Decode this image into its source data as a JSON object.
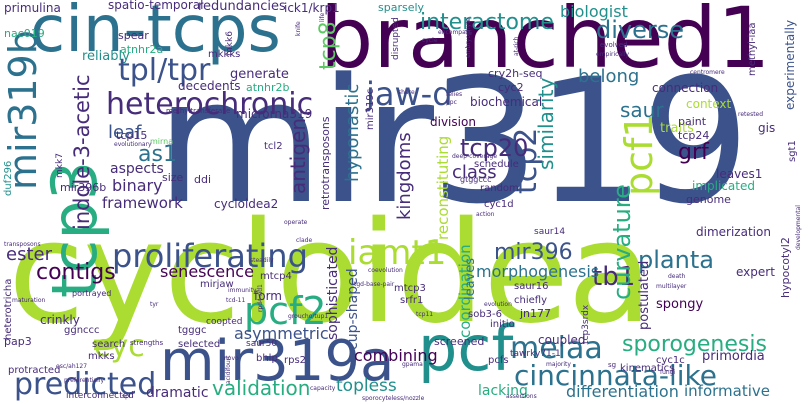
{
  "title": "word cloud",
  "palette": {
    "dark_purple": "#440154",
    "indigo": "#472c7a",
    "blue": "#3b528b",
    "slate": "#2c728e",
    "teal": "#21908d",
    "green_teal": "#27ad81",
    "green": "#5dc863",
    "yellow_green": "#aadc32",
    "yellow": "#fde725"
  },
  "words": {
    "mir319": "mir319",
    "cycloidea": "cycloidea",
    "branched1": "branched1",
    "cin_tcps": "cin-tcps",
    "tcp3": "tcp3",
    "pcf": "pcf",
    "mir319a": "mir319a",
    "mir319b": "mir319b",
    "heterochronic": "heterochronic",
    "tpl_tpr": "tpl/tpr",
    "jaw_d": "jaw-d",
    "proliferating": "proliferating",
    "iamt1": "iamt1",
    "predicted": "predicted",
    "cincinnata_like": "cincinnata-like",
    "meiaa": "meiaa",
    "sporogenesis": "sporogenesis",
    "tb1": "tb1",
    "pcf1": "pcf1",
    "pcf2": "pcf2",
    "tcp2": "tcp2",
    "tcp20": "tcp20",
    "cyc": "cyc",
    "indole_3_acetic": "indole-3-acetic",
    "interactome": "interactome",
    "diverse": "diverse",
    "biologist": "biologist",
    "contigs": "contigs",
    "validation": "validation",
    "as1": "as1",
    "curvature": "curvature",
    "similarity": "similarity",
    "antigen": "antigen",
    "hyponastic": "hyponastic",
    "kingdoms": "kingdoms",
    "tcp8": "tcp8",
    "planta": "planta",
    "mir396": "mir396",
    "morphogenesis": "morphogenesis",
    "grf": "grf",
    "saur": "saur",
    "belong": "belong",
    "class": "class",
    "leaf": "leaf",
    "asymmetric": "asymmetric",
    "ester": "ester",
    "senescence": "senescence",
    "framework": "framework",
    "binary": "binary",
    "aspects": "aspects",
    "combining": "combining",
    "dramatic": "dramatic",
    "topless": "topless",
    "differentiation": "differentiation",
    "informative": "informative",
    "lacking": "lacking",
    "coordination": "coordination",
    "sophisticated": "sophisticated",
    "cup_shaped": "cup-shaped",
    "reconstituting": "reconstituting",
    "redundancies": "redundancies",
    "spatio_temporal": "spatio-temporal",
    "primulina": "primulina",
    "ick1_krp1": "ick1/krp1",
    "sparsely": "sparsely",
    "reliably": "reliably",
    "generate": "generate",
    "decedents": "decedents",
    "cry2h_seq": "cry2h-seq",
    "biochemical": "biochemical",
    "connection": "connection",
    "context": "context",
    "traits": "traits",
    "experimentally": "experimentally",
    "methyl_iaa": "methyl-iaa",
    "division": "division",
    "schedule": "schedule",
    "gtggccc": "gtggccc",
    "random": "random",
    "cyc1d": "cyc1d",
    "cyc2": "cyc2",
    "paint": "paint",
    "tcp24": "tcp24",
    "gis": "gis",
    "sgt1": "sgt1",
    "implicated": "implicated",
    "leaves1": "leaves1",
    "genome": "genome",
    "dimerization": "dimerization",
    "hypocotyl2": "hypocotyl2",
    "expert": "expert",
    "spongy": "spongy",
    "postulated": "postulated",
    "primordia": "primordia",
    "cyc1c": "cyc1c",
    "kinematics": "kinematics",
    "tawrky71_1": "tawrky71-1",
    "pcfs": "pcfs",
    "coupled": "coupled",
    "screened": "screened",
    "saur16": "saur16",
    "saur14": "saur14",
    "chiefly": "chiefly",
    "jn177": "jn177",
    "initio": "initio",
    "sob3_6": "sob3-6",
    "srfr1": "srfr1",
    "mtcp3": "mtcp3",
    "leaves": "leaves",
    "tcp3srdx": "tcp3srdx",
    "sg": "sg",
    "rps2": "rps2",
    "bhlp": "bhlp",
    "saur50": "saur50",
    "tgggc": "tgggc",
    "coopted": "coopted",
    "selected": "selected",
    "interconnected": "interconnected",
    "protracted": "protracted",
    "mkks": "mkks",
    "search": "search",
    "pap3": "pap3",
    "ggnccc": "ggnccc",
    "crinkly": "crinkly",
    "heterotricha": "heterotricha",
    "mirjaw": "mirjaw",
    "form": "form",
    "mtcp4": "mtcp4",
    "mir396b": "mir396b",
    "duf296": "duf296",
    "cycloidea2": "cycloidea2",
    "ddi": "ddi",
    "size": "size",
    "tcp15": "tcp15",
    "mirna": "mirna",
    "micrornna319": "microrna319",
    "retrotransposons": "retrotransposons",
    "mir319c": "mir319c",
    "tcl2": "tcl2",
    "methyltransferase": "methyltransferase",
    "atnhr2b": "atnhr2b",
    "atnhr2a": "atnhr2a",
    "mkk6": "mkk6",
    "mkk7": "mkk7",
    "mkkks": "mkkks",
    "nac019": "nac019",
    "spear": "spear",
    "evolutionary": "evolutionary",
    "portrayed": "portrayed",
    "maturation": "maturation",
    "transposons": "transposons",
    "immunity": "immunity",
    "coevolution": "coevolution",
    "base_pair": "tgd-base-pair",
    "multilayer": "multilayer",
    "death": "death",
    "developmental": "developmental",
    "clade": "clade",
    "operate": "operate",
    "action": "action",
    "deep_coverage": "deep-coverage",
    "relies": "relies",
    "ppc": "ppc",
    "share": "share",
    "disrupted": "disrupted",
    "encompass": "encompass",
    "embryophyte": "embryophyte",
    "at_rich": "at-rich",
    "evolved": "evolved",
    "centromere": "centromere",
    "life": "life",
    "knife": "knife",
    "strengths": "strengths",
    "groucho_tup1": "groucho/tup1",
    "novo": "novo",
    "acidifourt": "acidifourt",
    "majority": "majority",
    "gpama": "gpama",
    "esc_ah127": "esc/ah127",
    "preferentially": "preferentially",
    "spl": "spl",
    "capacity": "capacity",
    "assertions": "assertions",
    "sporocyteless_nozzle": "sporocyteless/nozzle",
    "fungi": "fungi",
    "evolution": "evolution",
    "steadily": "steadily",
    "tyr": "tyr",
    "tcp11": "tcp11",
    "retested": "retested",
    "empirically": "empirically",
    "cycle": "cycle",
    "rpd4_rid1": "rpd4-rid1",
    "tcd_11": "tcd-11"
  }
}
